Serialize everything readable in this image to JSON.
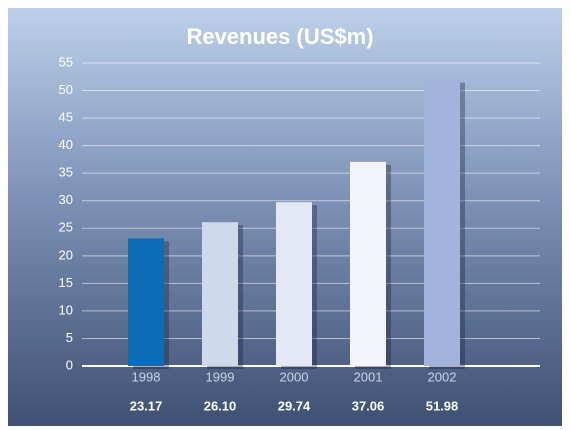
{
  "chart_data": {
    "type": "bar",
    "title": "Revenues (US$m)",
    "categories": [
      "1998",
      "1999",
      "2000",
      "2001",
      "2002"
    ],
    "values": [
      23.17,
      26.1,
      29.74,
      37.06,
      51.98
    ],
    "value_labels": [
      "23.17",
      "26.10",
      "29.74",
      "37.06",
      "51.98"
    ],
    "colors": [
      "#0b6db6",
      "#cfd9ec",
      "#e4e8f5",
      "#f3f5fb",
      "#a2b4db"
    ],
    "ylim": [
      0,
      55
    ],
    "yticks": [
      0,
      5,
      10,
      15,
      20,
      25,
      30,
      35,
      40,
      45,
      50,
      55
    ],
    "grid": true
  }
}
